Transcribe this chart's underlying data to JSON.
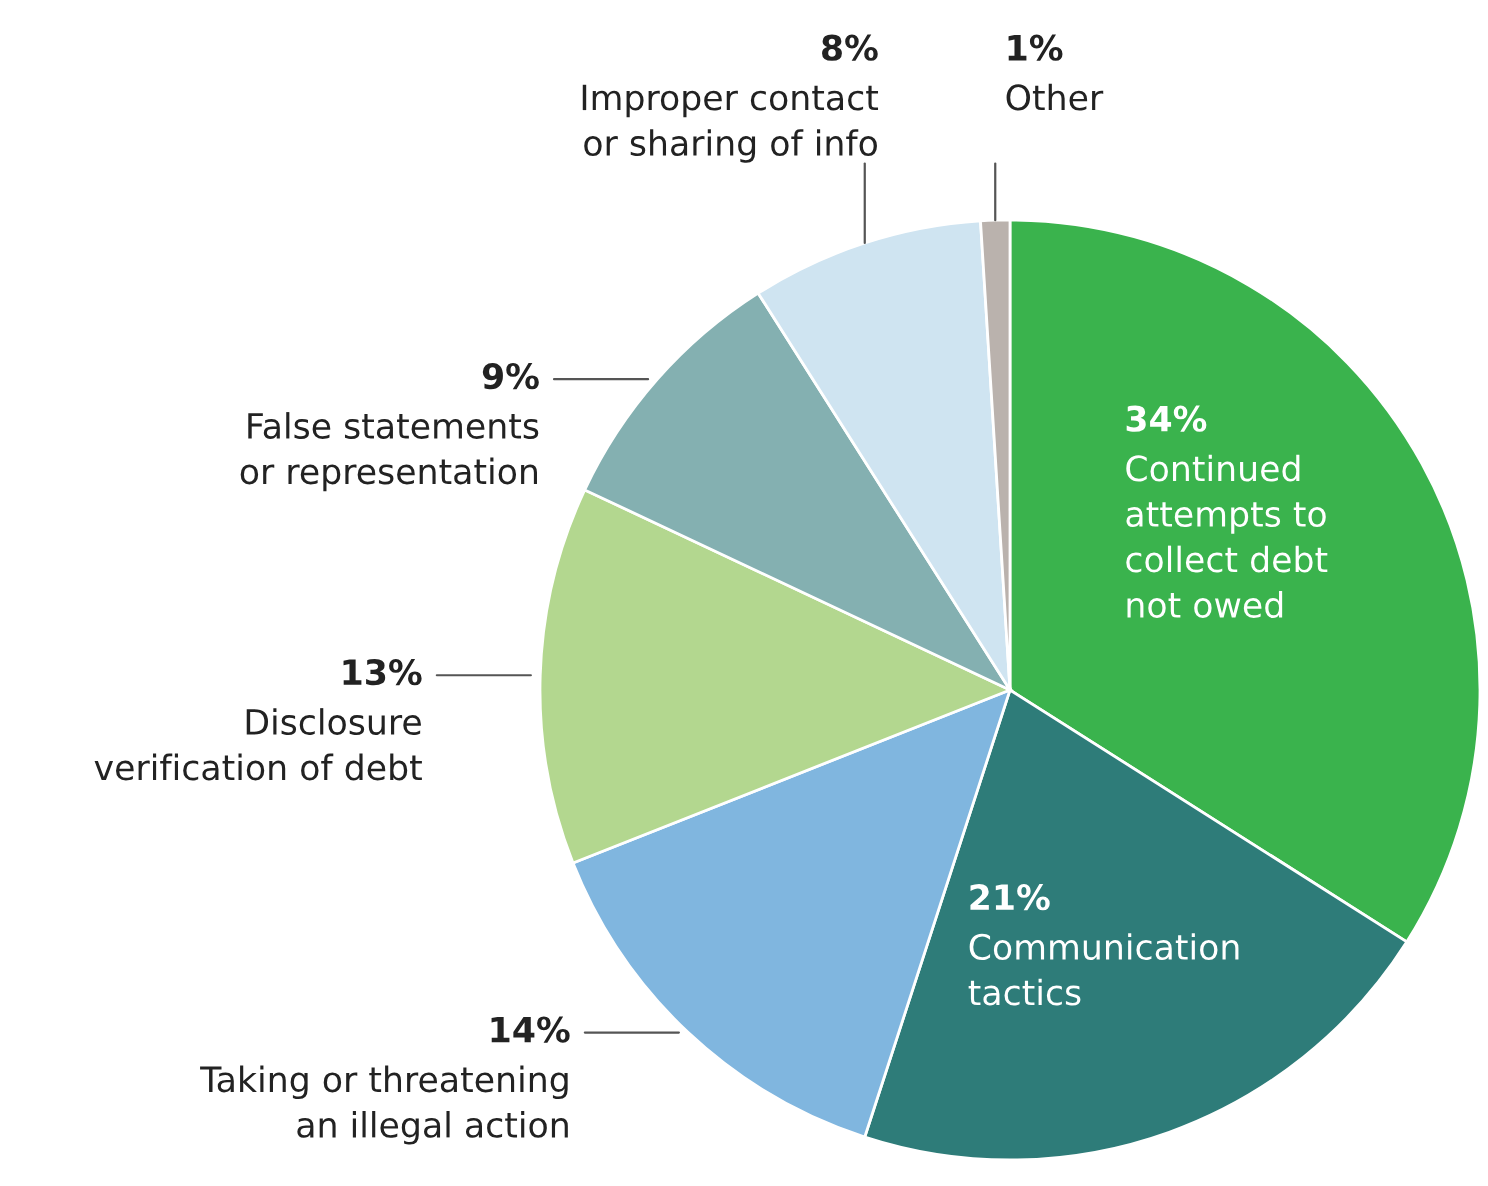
{
  "chart_data": {
    "type": "pie",
    "categories": [
      "Continued\nattempts to\ncollect debt\nnot owed",
      "Communication\ntactics",
      "Taking or threatening\nan illegal action",
      "Disclosure\nverification of debt",
      "False statements\nor representation",
      "Improper contact\nor sharing of info",
      "Other"
    ],
    "values": [
      34,
      21,
      14,
      13,
      9,
      8,
      1
    ],
    "value_labels": [
      "34%",
      "21%",
      "14%",
      "13%",
      "9%",
      "8%",
      "1%"
    ],
    "colors": [
      "#3ab34d",
      "#2e7c79",
      "#80b6df",
      "#b3d78f",
      "#84b0b1",
      "#cfe4f1",
      "#bab2ad"
    ]
  }
}
